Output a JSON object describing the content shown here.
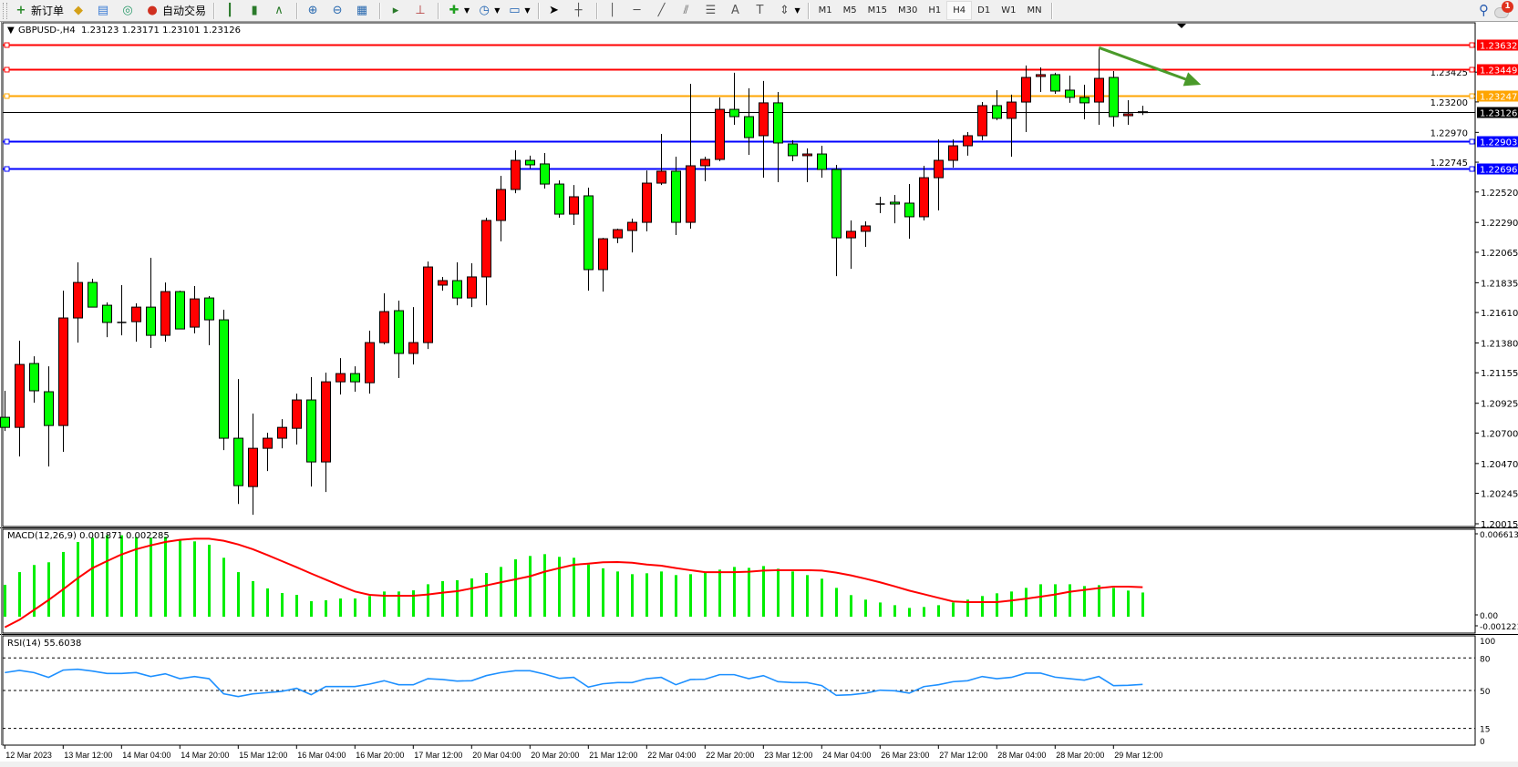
{
  "toolbar": {
    "new_order": "新订单",
    "auto_trading": "自动交易",
    "timeframes": [
      "M1",
      "M5",
      "M15",
      "M30",
      "H1",
      "H4",
      "D1",
      "W1",
      "MN"
    ],
    "active_timeframe": "H4",
    "notification_count": "1",
    "icons": [
      "new-order-icon",
      "history-icon",
      "terminal-icon",
      "signals-icon",
      "auto-trading-icon",
      "bar-chart-icon",
      "candlestick-icon",
      "line-chart-icon",
      "zoom-in-icon",
      "zoom-out-icon",
      "tile-windows-icon",
      "auto-scroll-icon",
      "chart-shift-icon",
      "new-chart-icon",
      "periods-icon",
      "templates-icon",
      "cursor-icon",
      "crosshair-icon",
      "vertical-line-icon",
      "horizontal-line-icon",
      "trendline-icon",
      "fibonacci-channel-icon",
      "fibonacci-icon",
      "text-icon",
      "text-label-icon",
      "arrows-icon",
      "search-icon",
      "notification-icon"
    ]
  },
  "chart": {
    "header": "GBPUSD-,H4  1.23123 1.23171 1.23101 1.23126",
    "colors": {
      "bull": "#ff0000",
      "bear": "#00ff00",
      "outline": "#000000",
      "macd_hist": "#00ee00",
      "macd_signal": "#ff0000",
      "rsi": "#1e90ff",
      "arrow": "#4a9a2a"
    },
    "price_axis": [
      "1.23425",
      "1.23200",
      "1.22970",
      "1.22745",
      "1.22520",
      "1.22290",
      "1.22065",
      "1.21835",
      "1.21610",
      "1.21380",
      "1.21155",
      "1.20925",
      "1.20700",
      "1.20470",
      "1.20245",
      "1.20015"
    ],
    "levels": [
      {
        "price": 1.23632,
        "label": "1.23632",
        "color": "#ff0000"
      },
      {
        "price": 1.23449,
        "label": "1.23449",
        "color": "#ff0000"
      },
      {
        "price": 1.23247,
        "label": "1.23247",
        "color": "#ffa500"
      },
      {
        "price": 1.23126,
        "label": "1.23126",
        "color": "#000000"
      },
      {
        "price": 1.22903,
        "label": "1.22903",
        "color": "#0000ff"
      },
      {
        "price": 1.22696,
        "label": "1.22696",
        "color": "#0000ff"
      }
    ],
    "time_axis": [
      "12 Mar 2023",
      "13 Mar 12:00",
      "14 Mar 04:00",
      "14 Mar 20:00",
      "15 Mar 12:00",
      "16 Mar 04:00",
      "16 Mar 20:00",
      "17 Mar 12:00",
      "20 Mar 04:00",
      "20 Mar 20:00",
      "21 Mar 12:00",
      "22 Mar 04:00",
      "22 Mar 20:00",
      "23 Mar 12:00",
      "24 Mar 04:00",
      "26 Mar 23:00",
      "27 Mar 12:00",
      "28 Mar 04:00",
      "28 Mar 20:00",
      "29 Mar 12:00"
    ]
  },
  "macd": {
    "header": "MACD(12,26,9) 0.001871 0.002285",
    "axis": [
      "0.006613",
      "0.00",
      "-0.001221"
    ]
  },
  "rsi": {
    "header": "RSI(14) 55.6038",
    "axis": [
      "100",
      "80",
      "50",
      "15",
      "0"
    ],
    "levels": [
      80,
      50,
      15
    ]
  },
  "chart_data": [
    {
      "type": "candlestick",
      "title": "GBPUSD-,H4",
      "ylim": [
        1.20015,
        1.23632
      ],
      "ohlc": [
        [
          1.20819,
          1.21019,
          1.20716,
          1.20743
        ],
        [
          1.20743,
          1.21397,
          1.20523,
          1.21218
        ],
        [
          1.21225,
          1.2128,
          1.20929,
          1.21019
        ],
        [
          1.21012,
          1.21204,
          1.20447,
          1.20757
        ],
        [
          1.20757,
          1.21775,
          1.20558,
          1.21569
        ],
        [
          1.21569,
          1.21989,
          1.21383,
          1.21837
        ],
        [
          1.21837,
          1.21865,
          1.21651,
          1.21651
        ],
        [
          1.21665,
          1.21686,
          1.21424,
          1.21535
        ],
        [
          1.21535,
          1.21817,
          1.21438,
          1.21535
        ],
        [
          1.21541,
          1.21679,
          1.2139,
          1.21651
        ],
        [
          1.21651,
          1.22023,
          1.21342,
          1.21438
        ],
        [
          1.21438,
          1.21837,
          1.2139,
          1.21768
        ],
        [
          1.21768,
          1.21775,
          1.21486,
          1.21486
        ],
        [
          1.215,
          1.2181,
          1.21452,
          1.21713
        ],
        [
          1.2172,
          1.21734,
          1.21363,
          1.21555
        ],
        [
          1.21555,
          1.21631,
          1.20571,
          1.20661
        ],
        [
          1.20661,
          1.21108,
          1.20165,
          1.20303
        ],
        [
          1.20296,
          1.20847,
          1.20083,
          1.20585
        ],
        [
          1.20585,
          1.20702,
          1.20413,
          1.20661
        ],
        [
          1.20661,
          1.20805,
          1.20585,
          1.20743
        ],
        [
          1.20736,
          1.20998,
          1.20613,
          1.2095
        ],
        [
          1.2095,
          1.21122,
          1.20296,
          1.20482
        ],
        [
          1.20482,
          1.21156,
          1.20255,
          1.21087
        ],
        [
          1.21087,
          1.21266,
          1.20991,
          1.21149
        ],
        [
          1.21149,
          1.21204,
          1.21012,
          1.21087
        ],
        [
          1.2108,
          1.21473,
          1.20998,
          1.21383
        ],
        [
          1.21383,
          1.21755,
          1.21369,
          1.21617
        ],
        [
          1.21624,
          1.217,
          1.21115,
          1.21301
        ],
        [
          1.21301,
          1.21651,
          1.21218,
          1.21383
        ],
        [
          1.21383,
          1.21995,
          1.21335,
          1.21954
        ],
        [
          1.21817,
          1.21879,
          1.21775,
          1.21851
        ],
        [
          1.21851,
          1.21989,
          1.21665,
          1.2172
        ],
        [
          1.2172,
          1.21982,
          1.21651,
          1.21879
        ],
        [
          1.21879,
          1.22326,
          1.21665,
          1.22305
        ],
        [
          1.22305,
          1.22642,
          1.22147,
          1.22539
        ],
        [
          1.22539,
          1.22835,
          1.22511,
          1.22759
        ],
        [
          1.22759,
          1.22794,
          1.22697,
          1.22725
        ],
        [
          1.22732,
          1.22814,
          1.22546,
          1.2258
        ],
        [
          1.2258,
          1.22608,
          1.22326,
          1.22353
        ],
        [
          1.22353,
          1.22573,
          1.22271,
          1.22484
        ],
        [
          1.22491,
          1.22553,
          1.21775,
          1.21934
        ],
        [
          1.21934,
          1.22174,
          1.21768,
          1.22167
        ],
        [
          1.22174,
          1.22243,
          1.22133,
          1.22236
        ],
        [
          1.22229,
          1.22319,
          1.22064,
          1.22291
        ],
        [
          1.22291,
          1.22683,
          1.22223,
          1.22587
        ],
        [
          1.22587,
          1.22959,
          1.22573,
          1.22677
        ],
        [
          1.22677,
          1.22787,
          1.22195,
          1.22291
        ],
        [
          1.22291,
          1.23337,
          1.22243,
          1.22718
        ],
        [
          1.22718,
          1.22787,
          1.22601,
          1.22766
        ],
        [
          1.22766,
          1.23234,
          1.22752,
          1.23144
        ],
        [
          1.23144,
          1.2342,
          1.23027,
          1.23089
        ],
        [
          1.23089,
          1.23303,
          1.228,
          1.22931
        ],
        [
          1.22945,
          1.23358,
          1.22628,
          1.23193
        ],
        [
          1.23193,
          1.23275,
          1.22594,
          1.2289
        ],
        [
          1.22883,
          1.22911,
          1.22752,
          1.22794
        ],
        [
          1.22794,
          1.22849,
          1.22594,
          1.22807
        ],
        [
          1.22807,
          1.22869,
          1.22628,
          1.2269
        ],
        [
          1.2269,
          1.22725,
          1.21885,
          1.22174
        ],
        [
          1.22174,
          1.22305,
          1.2194,
          1.22223
        ],
        [
          1.22223,
          1.22298,
          1.22106,
          1.22264
        ],
        [
          1.22429,
          1.22484,
          1.2236,
          1.22429
        ],
        [
          1.22443,
          1.22498,
          1.22284,
          1.22429
        ],
        [
          1.22436,
          1.2258,
          1.22167,
          1.22333
        ],
        [
          1.22333,
          1.22718,
          1.22305,
          1.22628
        ],
        [
          1.22628,
          1.22917,
          1.22381,
          1.22759
        ],
        [
          1.22759,
          1.22917,
          1.22704,
          1.22869
        ],
        [
          1.22869,
          1.22972,
          1.22794,
          1.22945
        ],
        [
          1.22945,
          1.23199,
          1.22911,
          1.23172
        ],
        [
          1.23172,
          1.23289,
          1.23062,
          1.23076
        ],
        [
          1.23076,
          1.23255,
          1.22787,
          1.23199
        ],
        [
          1.23199,
          1.23475,
          1.22972,
          1.23385
        ],
        [
          1.23392,
          1.23461,
          1.23275,
          1.23406
        ],
        [
          1.23406,
          1.2342,
          1.23261,
          1.23282
        ],
        [
          1.23289,
          1.23399,
          1.23193,
          1.23234
        ],
        [
          1.23234,
          1.2333,
          1.23069,
          1.23193
        ],
        [
          1.23199,
          1.23605,
          1.23027,
          1.23378
        ],
        [
          1.23385,
          1.23433,
          1.23014,
          1.23089
        ],
        [
          1.23096,
          1.23213,
          1.23027,
          1.2311
        ],
        [
          1.23123,
          1.23171,
          1.23101,
          1.23126
        ]
      ],
      "annotation": "down-arrow",
      "arrow": {
        "from": {
          "bar": 75,
          "price": 1.2361
        },
        "to": {
          "bar": 82,
          "price": 1.2333
        }
      }
    },
    {
      "type": "bar+line",
      "title": "MACD(12,26,9)",
      "ylim": [
        -0.001221,
        0.006613
      ],
      "histogram": [
        0.00247,
        0.00345,
        0.004,
        0.00421,
        0.00501,
        0.00578,
        0.00611,
        0.0063,
        0.0063,
        0.00616,
        0.00611,
        0.00618,
        0.00595,
        0.00583,
        0.00557,
        0.00456,
        0.00345,
        0.00275,
        0.00219,
        0.00183,
        0.00169,
        0.0012,
        0.00127,
        0.00141,
        0.00141,
        0.0016,
        0.00195,
        0.00195,
        0.00204,
        0.00251,
        0.00275,
        0.00282,
        0.00296,
        0.00338,
        0.00385,
        0.00444,
        0.0047,
        0.00484,
        0.00463,
        0.00456,
        0.00404,
        0.00374,
        0.0035,
        0.00329,
        0.00336,
        0.0035,
        0.00322,
        0.00329,
        0.00338,
        0.00364,
        0.00385,
        0.00378,
        0.00392,
        0.00371,
        0.0035,
        0.00322,
        0.00294,
        0.00223,
        0.00167,
        0.00132,
        0.0011,
        0.00089,
        0.00068,
        0.00075,
        0.00089,
        0.0011,
        0.00132,
        0.0016,
        0.00181,
        0.00195,
        0.00223,
        0.00251,
        0.00251,
        0.00251,
        0.00237,
        0.00244,
        0.00223,
        0.00202,
        0.001871
      ],
      "signal": [
        -0.00082,
        -0.00024,
        0.00052,
        0.00129,
        0.00212,
        0.00298,
        0.00376,
        0.0043,
        0.00482,
        0.00522,
        0.00552,
        0.00578,
        0.00595,
        0.00604,
        0.00604,
        0.00588,
        0.00559,
        0.00522,
        0.00477,
        0.0043,
        0.00383,
        0.00334,
        0.00287,
        0.0024,
        0.00195,
        0.00169,
        0.00162,
        0.00162,
        0.00162,
        0.00172,
        0.00186,
        0.00197,
        0.00219,
        0.00242,
        0.00266,
        0.00289,
        0.00313,
        0.00348,
        0.00376,
        0.00402,
        0.00411,
        0.00421,
        0.00423,
        0.00418,
        0.00404,
        0.00395,
        0.00376,
        0.0036,
        0.00345,
        0.00345,
        0.00345,
        0.00348,
        0.00357,
        0.0036,
        0.0036,
        0.0036,
        0.00357,
        0.00341,
        0.0032,
        0.00294,
        0.00266,
        0.00235,
        0.00202,
        0.00174,
        0.00146,
        0.00118,
        0.00113,
        0.00113,
        0.00113,
        0.00125,
        0.00139,
        0.00155,
        0.00172,
        0.00193,
        0.00207,
        0.00221,
        0.00233,
        0.00233,
        0.002285
      ]
    },
    {
      "type": "line",
      "title": "RSI(14)",
      "ylim": [
        0,
        100
      ],
      "values": [
        66.5,
        68.5,
        66.5,
        62.1,
        68.8,
        69.6,
        67.9,
        65.7,
        65.7,
        66.5,
        62.9,
        65.4,
        60.9,
        62.9,
        60.9,
        46.9,
        44.4,
        46.9,
        48.0,
        49.2,
        52.0,
        46.1,
        53.6,
        53.6,
        53.6,
        55.9,
        59.0,
        55.3,
        55.3,
        60.9,
        60.1,
        58.7,
        59.0,
        63.7,
        66.5,
        68.2,
        68.2,
        65.1,
        61.2,
        62.1,
        53.1,
        56.2,
        57.3,
        57.3,
        60.9,
        62.1,
        55.3,
        60.1,
        60.4,
        64.6,
        64.6,
        60.9,
        63.7,
        58.1,
        57.3,
        57.3,
        54.5,
        45.5,
        46.1,
        47.5,
        50.3,
        49.7,
        47.5,
        53.6,
        55.3,
        58.1,
        59.0,
        62.9,
        60.9,
        62.1,
        66.0,
        66.0,
        62.3,
        60.9,
        59.5,
        62.9,
        54.5,
        54.8,
        55.6038
      ]
    }
  ]
}
